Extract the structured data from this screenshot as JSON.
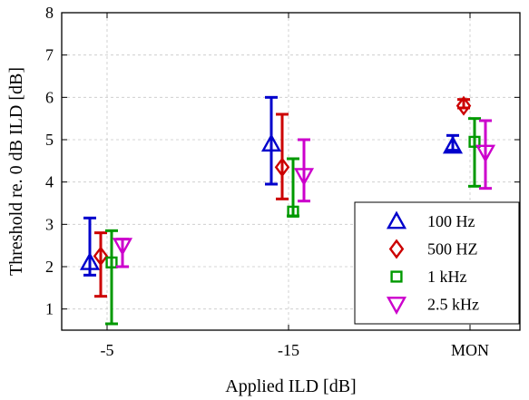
{
  "chart_data": {
    "type": "scatter",
    "categories": [
      "-5",
      "-15",
      "MON"
    ],
    "xlabel": "Applied ILD [dB]",
    "ylabel": "Threshold re. 0 dB ILD [dB]",
    "ylim": [
      0.5,
      8
    ],
    "yticks": [
      1,
      2,
      3,
      4,
      5,
      6,
      7,
      8
    ],
    "grid": true,
    "legend_position": "bottom-right",
    "series": [
      {
        "name": "100 Hz",
        "marker": "triangle-up",
        "color": "#0000cc",
        "values": [
          2.1,
          4.9,
          4.85
        ],
        "lower": [
          1.8,
          3.95,
          4.75
        ],
        "upper": [
          3.15,
          6.0,
          5.1
        ]
      },
      {
        "name": "500 HZ",
        "marker": "diamond",
        "color": "#cc0000",
        "values": [
          2.25,
          4.35,
          5.8
        ],
        "lower": [
          1.3,
          3.6,
          5.75
        ],
        "upper": [
          2.8,
          5.6,
          5.95
        ]
      },
      {
        "name": "1 kHz",
        "marker": "square",
        "color": "#009900",
        "values": [
          2.1,
          3.3,
          4.95
        ],
        "lower": [
          0.65,
          3.2,
          3.9
        ],
        "upper": [
          2.85,
          4.55,
          5.5
        ]
      },
      {
        "name": "2.5 kHz",
        "marker": "triangle-down",
        "color": "#cc00cc",
        "values": [
          2.5,
          4.15,
          4.7
        ],
        "lower": [
          2.0,
          3.55,
          3.85
        ],
        "upper": [
          2.65,
          5.0,
          5.45
        ]
      }
    ]
  }
}
